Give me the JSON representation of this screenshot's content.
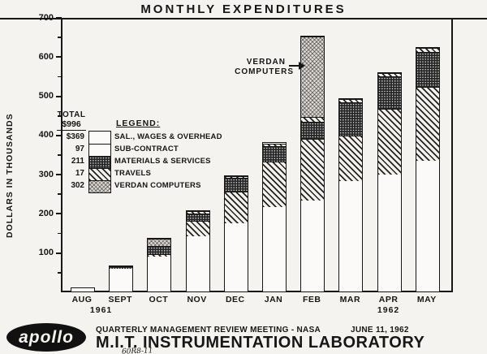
{
  "title": "MONTHLY EXPENDITURES",
  "y_axis": {
    "label": "DOLLARS IN THOUSANDS",
    "ticks": [
      700,
      600,
      500,
      400,
      300,
      200,
      100
    ],
    "minor_ticks": [
      650,
      550,
      450,
      350,
      250,
      150,
      50
    ]
  },
  "legend": {
    "heading": "LEGEND:",
    "total_label": "TOTAL",
    "total_value": "$996",
    "items": [
      {
        "value": "$369",
        "label": "SAL., WAGES & OVERHEAD",
        "pattern": "white"
      },
      {
        "value": "97",
        "label": "SUB-CONTRACT",
        "pattern": "white"
      },
      {
        "value": "211",
        "label": "MATERIALS & SERVICES",
        "pattern": "crosshatch-dark"
      },
      {
        "value": "17",
        "label": "TRAVELS",
        "pattern": "diagonal"
      },
      {
        "value": "302",
        "label": "VERDAN COMPUTERS",
        "pattern": "stipple-light"
      }
    ]
  },
  "annotation": {
    "line1": "VERDAN",
    "line2": "COMPUTERS",
    "target_month": "FEB"
  },
  "chart_data": {
    "type": "bar",
    "stacked": true,
    "title": "MONTHLY EXPENDITURES",
    "ylabel": "DOLLARS IN THOUSANDS",
    "ylim": [
      0,
      700
    ],
    "grid": false,
    "categories": [
      "AUG",
      "SEPT",
      "OCT",
      "NOV",
      "DEC",
      "JAN",
      "FEB",
      "MAR",
      "APR",
      "MAY"
    ],
    "year_labels": [
      {
        "text": "1961",
        "index": 0.5
      },
      {
        "text": "1962",
        "index": 8
      }
    ],
    "series": [
      {
        "name": "SAL., WAGES & OVERHEAD",
        "pattern": "white",
        "values": [
          8,
          57,
          90,
          140,
          175,
          215,
          232,
          282,
          298,
          333
        ]
      },
      {
        "name": "SUB-CONTRACT",
        "pattern": "diagonal",
        "values": [
          0,
          0,
          6,
          40,
          80,
          117,
          158,
          115,
          167,
          188
        ]
      },
      {
        "name": "MATERIALS & SERVICES",
        "pattern": "crosshatch-dark",
        "values": [
          0,
          8,
          20,
          19,
          34,
          38,
          42,
          85,
          83,
          89
        ]
      },
      {
        "name": "TRAVELS",
        "pattern": "diagonal",
        "values": [
          0,
          0,
          0,
          6,
          6,
          8,
          14,
          8,
          10,
          12
        ]
      },
      {
        "name": "VERDAN COMPUTERS",
        "pattern": "stipple-light",
        "values": [
          0,
          0,
          19,
          0,
          0,
          0,
          204,
          0,
          0,
          0
        ]
      }
    ],
    "bar_totals": [
      8,
      65,
      135,
      205,
      295,
      378,
      650,
      490,
      558,
      622
    ]
  },
  "footer": {
    "meeting": "QUARTERLY MANAGEMENT REVIEW MEETING - NASA",
    "date": "JUNE 11, 1962",
    "organization": "M.I.T. INSTRUMENTATION LABORATORY",
    "logo_text": "apollo",
    "handwritten_note": "60R8-11"
  }
}
